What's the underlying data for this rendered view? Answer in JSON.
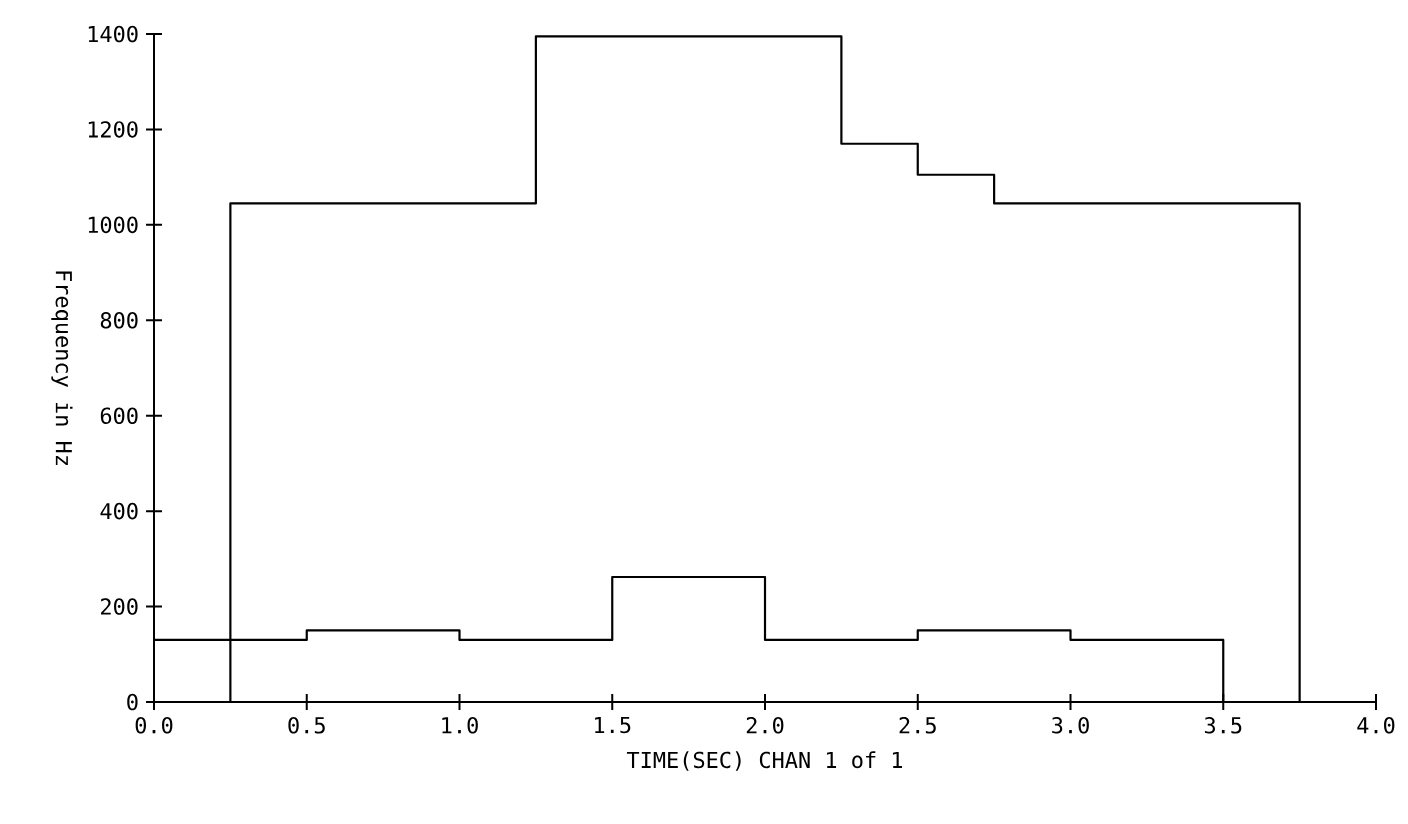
{
  "chart_data": {
    "type": "step",
    "xlabel": "TIME(SEC) CHAN 1 of 1",
    "ylabel": "Frequency in Hz",
    "series": [
      {
        "color": "#000000",
        "x": [
          0,
          0.25,
          1.25,
          2.25,
          2.5,
          2.75,
          3.75,
          4.0
        ],
        "values": [
          0,
          1045,
          1395,
          1170,
          1105,
          1045,
          0,
          0
        ]
      },
      {
        "color": "#000000",
        "x": [
          0,
          0.5,
          1.0,
          1.5,
          2.0,
          2.5,
          3.0,
          3.5,
          4.0
        ],
        "values": [
          130,
          150,
          130,
          262,
          130,
          150,
          130,
          0,
          0
        ]
      }
    ],
    "xlim": [
      0,
      4
    ],
    "ylim": [
      0,
      1400
    ],
    "xticks": [
      {
        "value": 0,
        "label": "0.0"
      },
      0.5,
      {
        "value": 1,
        "label": "1.0"
      },
      1.5,
      {
        "value": 2,
        "label": "2.0"
      },
      2.5,
      {
        "value": 3,
        "label": "3.0"
      },
      3.5,
      {
        "value": 4,
        "label": "4.0"
      }
    ],
    "yticks": [
      0,
      200,
      400,
      600,
      800,
      1000,
      1200,
      1400
    ]
  }
}
